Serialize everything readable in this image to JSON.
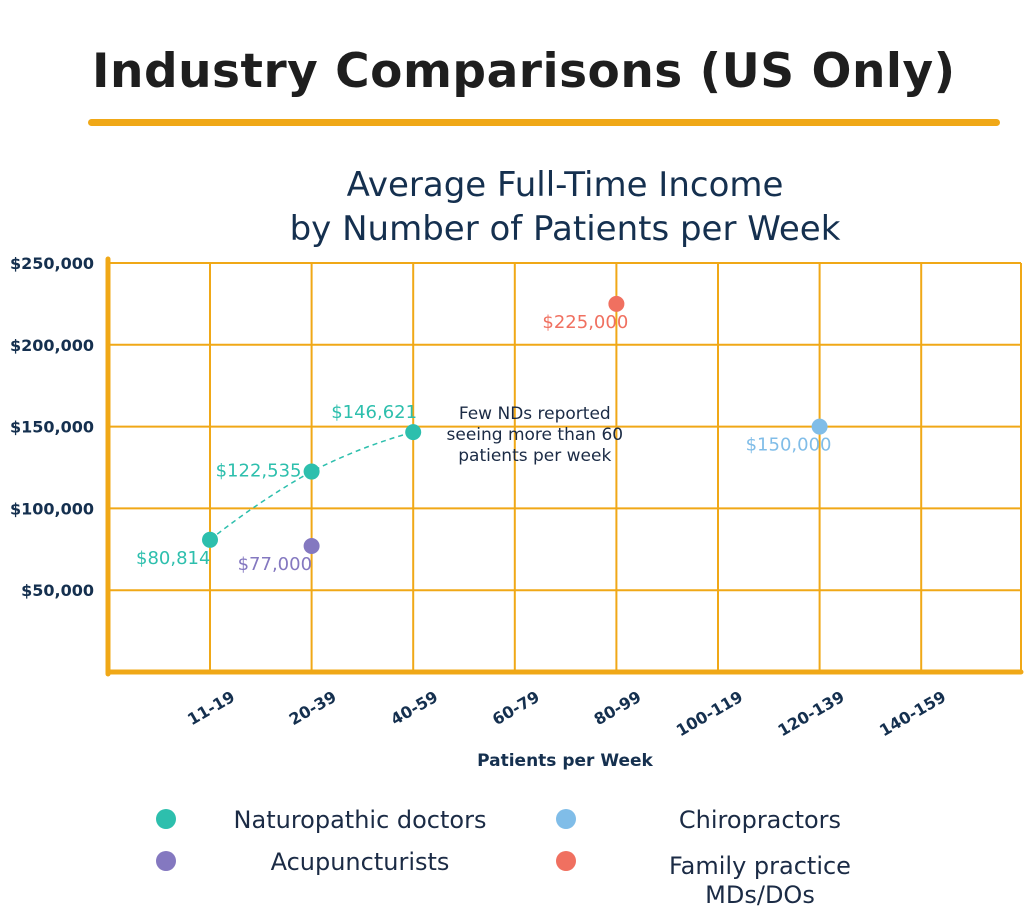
{
  "header": {
    "title": "Industry Comparisons (US Only)",
    "accent_color": "#f0a817"
  },
  "chart_data": {
    "type": "scatter",
    "title": "Average Full-Time Income\nby Number of Patients per Week",
    "xlabel": "Patients per Week",
    "ylabel": "",
    "categories": [
      "11-19",
      "20-39",
      "40-59",
      "60-79",
      "80-99",
      "100-119",
      "120-139",
      "140-159"
    ],
    "y_ticks": [
      {
        "value": 250000,
        "label": "$250,000"
      },
      {
        "value": 200000,
        "label": "$200,000"
      },
      {
        "value": 150000,
        "label": "$150,000"
      },
      {
        "value": 100000,
        "label": "$100,000"
      },
      {
        "value": 50000,
        "label": "$50,000"
      }
    ],
    "ylim": [
      0,
      250000
    ],
    "grid": true,
    "grid_color": "#f0a817",
    "series": [
      {
        "name": "Naturopathic doctors",
        "color": "#2dbfad",
        "connected": true,
        "points": [
          {
            "category": "11-19",
            "value": 80814,
            "label": "$80,814",
            "label_pos": "below-left"
          },
          {
            "category": "20-39",
            "value": 122535,
            "label": "$122,535",
            "label_pos": "left"
          },
          {
            "category": "40-59",
            "value": 146621,
            "label": "$146,621",
            "label_pos": "above-left"
          }
        ]
      },
      {
        "name": "Acupuncturists",
        "color": "#8478c0",
        "connected": false,
        "points": [
          {
            "category": "20-39",
            "value": 77000,
            "label": "$77,000",
            "label_pos": "below-left"
          }
        ]
      },
      {
        "name": "Chiropractors",
        "color": "#80bde8",
        "connected": false,
        "points": [
          {
            "category": "120-139",
            "value": 150000,
            "label": "$150,000",
            "label_pos": "below-left"
          }
        ]
      },
      {
        "name": "Family practice\nMDs/DOs",
        "color": "#f07060",
        "connected": false,
        "points": [
          {
            "category": "80-99",
            "value": 225000,
            "label": "$225,000",
            "label_pos": "below-left"
          }
        ]
      }
    ],
    "annotations": [
      {
        "text": "Few NDs reported\nseeing more than 60\npatients per week",
        "near_category": "60-79"
      }
    ],
    "legend_position": "bottom"
  }
}
